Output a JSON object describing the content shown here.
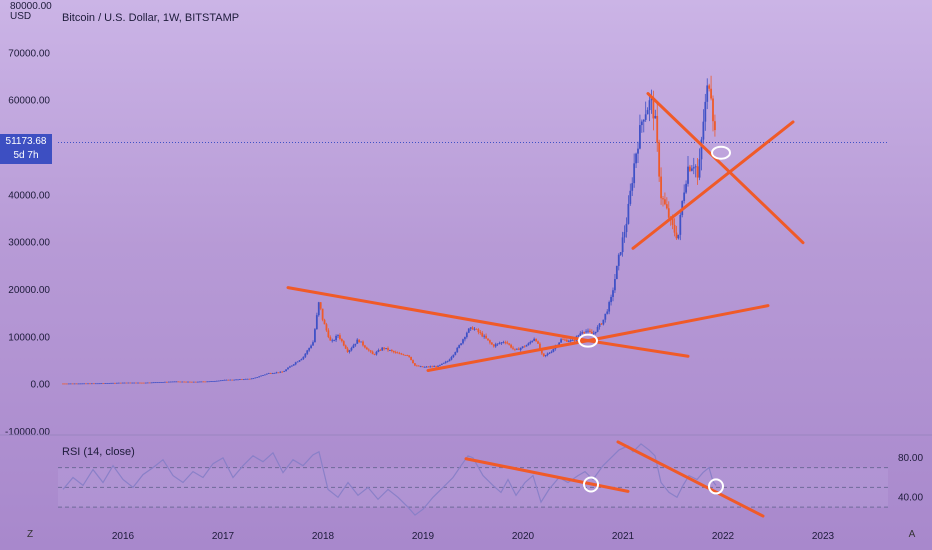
{
  "header": {
    "title": "Bitcoin / U.S. Dollar, 1W, BITSTAMP",
    "y_unit": "USD",
    "y_top_label": "80000.00"
  },
  "price_label": {
    "value": "51173.68",
    "countdown": "5d 7h"
  },
  "buttons": {
    "left": "Z",
    "right": "A"
  },
  "colors": {
    "background_top": "#cbb4e6",
    "background_bottom": "#a888cc",
    "candle_up": "#3f51c6",
    "candle_down": "#ee5a2a",
    "trendline": "#f05a28",
    "rsi_line": "#8a80c8",
    "price_line": "#3f51c6"
  },
  "chart_data": [
    {
      "type": "candlestick",
      "title": "Bitcoin / U.S. Dollar, 1W, BITSTAMP",
      "xlabel": "",
      "ylabel": "USD",
      "x_ticks": [
        "2016",
        "2017",
        "2018",
        "2019",
        "2020",
        "2021",
        "2022",
        "2023"
      ],
      "y_ticks": [
        "70000.00",
        "60000.00",
        "50000.00",
        "40000.00",
        "30000.00",
        "20000.00",
        "10000.00",
        "0.00",
        "-10000.00"
      ],
      "xlim": [
        2015.35,
        2023.65
      ],
      "ylim": [
        -10000,
        80000
      ],
      "current_price": 51173.68,
      "grid": false,
      "series": [
        {
          "points": [
            [
              2015.4,
              240
            ],
            [
              2015.6,
              260
            ],
            [
              2015.8,
              300
            ],
            [
              2016.0,
              430
            ],
            [
              2016.2,
              420
            ],
            [
              2016.4,
              560
            ],
            [
              2016.5,
              670
            ],
            [
              2016.7,
              600
            ],
            [
              2016.9,
              740
            ],
            [
              2017.0,
              980
            ],
            [
              2017.15,
              1100
            ],
            [
              2017.3,
              1300
            ],
            [
              2017.45,
              2400
            ],
            [
              2017.6,
              2700
            ],
            [
              2017.7,
              4300
            ],
            [
              2017.8,
              5800
            ],
            [
              2017.9,
              9000
            ],
            [
              2017.96,
              17500
            ],
            [
              2018.0,
              13500
            ],
            [
              2018.08,
              8800
            ],
            [
              2018.15,
              10500
            ],
            [
              2018.25,
              7000
            ],
            [
              2018.35,
              9500
            ],
            [
              2018.5,
              6300
            ],
            [
              2018.6,
              7800
            ],
            [
              2018.75,
              6500
            ],
            [
              2018.85,
              6300
            ],
            [
              2018.92,
              4000
            ],
            [
              2019.0,
              3700
            ],
            [
              2019.15,
              3900
            ],
            [
              2019.25,
              5000
            ],
            [
              2019.35,
              7800
            ],
            [
              2019.45,
              11500
            ],
            [
              2019.5,
              12000
            ],
            [
              2019.6,
              10300
            ],
            [
              2019.7,
              8200
            ],
            [
              2019.82,
              9200
            ],
            [
              2019.92,
              7200
            ],
            [
              2020.05,
              8500
            ],
            [
              2020.12,
              10000
            ],
            [
              2020.2,
              5800
            ],
            [
              2020.28,
              7000
            ],
            [
              2020.38,
              9500
            ],
            [
              2020.5,
              9200
            ],
            [
              2020.6,
              11500
            ],
            [
              2020.7,
              10700
            ],
            [
              2020.8,
              13500
            ],
            [
              2020.88,
              18000
            ],
            [
              2020.96,
              27000
            ],
            [
              2021.04,
              35000
            ],
            [
              2021.12,
              48000
            ],
            [
              2021.2,
              57000
            ],
            [
              2021.28,
              60000
            ],
            [
              2021.32,
              56000
            ],
            [
              2021.38,
              40000
            ],
            [
              2021.45,
              36000
            ],
            [
              2021.5,
              33000
            ],
            [
              2021.55,
              31000
            ],
            [
              2021.6,
              40000
            ],
            [
              2021.65,
              46000
            ],
            [
              2021.72,
              47000
            ],
            [
              2021.75,
              43000
            ],
            [
              2021.8,
              55000
            ],
            [
              2021.84,
              62000
            ],
            [
              2021.87,
              65000
            ],
            [
              2021.9,
              57000
            ],
            [
              2021.93,
              51173.68
            ]
          ]
        }
      ],
      "trendlines": [
        {
          "from": [
            2017.65,
            20500
          ],
          "to": [
            2020.65,
            9300
          ]
        },
        {
          "from": [
            2020.65,
            9300
          ],
          "to": [
            2021.65,
            6000
          ]
        },
        {
          "from": [
            2019.05,
            3000
          ],
          "to": [
            2020.65,
            9300
          ]
        },
        {
          "from": [
            2020.65,
            9300
          ],
          "to": [
            2022.45,
            16700
          ]
        },
        {
          "from": [
            2021.25,
            61500
          ],
          "to": [
            2022.8,
            30000
          ]
        },
        {
          "from": [
            2021.1,
            28800
          ],
          "to": [
            2022.7,
            55500
          ]
        }
      ],
      "markers": [
        [
          2020.65,
          9300
        ],
        [
          2021.98,
          49000
        ]
      ]
    },
    {
      "type": "line",
      "title": "RSI (14, close)",
      "xlabel": "",
      "ylabel": "",
      "xlim": [
        2015.35,
        2023.65
      ],
      "ylim": [
        15,
        100
      ],
      "y_ticks": [
        "80.00",
        "40.00"
      ],
      "bands": [
        70,
        50,
        30
      ],
      "series": [
        {
          "points": [
            [
              2015.4,
              48
            ],
            [
              2015.5,
              60
            ],
            [
              2015.6,
              52
            ],
            [
              2015.7,
              68
            ],
            [
              2015.8,
              55
            ],
            [
              2015.9,
              72
            ],
            [
              2016.0,
              58
            ],
            [
              2016.1,
              50
            ],
            [
              2016.2,
              63
            ],
            [
              2016.3,
              70
            ],
            [
              2016.4,
              78
            ],
            [
              2016.5,
              62
            ],
            [
              2016.6,
              55
            ],
            [
              2016.7,
              66
            ],
            [
              2016.8,
              60
            ],
            [
              2016.9,
              74
            ],
            [
              2017.0,
              80
            ],
            [
              2017.1,
              60
            ],
            [
              2017.2,
              72
            ],
            [
              2017.3,
              82
            ],
            [
              2017.4,
              76
            ],
            [
              2017.5,
              85
            ],
            [
              2017.6,
              65
            ],
            [
              2017.7,
              78
            ],
            [
              2017.8,
              72
            ],
            [
              2017.9,
              83
            ],
            [
              2017.96,
              86
            ],
            [
              2018.05,
              48
            ],
            [
              2018.15,
              40
            ],
            [
              2018.25,
              55
            ],
            [
              2018.35,
              42
            ],
            [
              2018.45,
              50
            ],
            [
              2018.55,
              38
            ],
            [
              2018.65,
              48
            ],
            [
              2018.75,
              40
            ],
            [
              2018.85,
              30
            ],
            [
              2018.92,
              22
            ],
            [
              2019.0,
              28
            ],
            [
              2019.1,
              40
            ],
            [
              2019.2,
              50
            ],
            [
              2019.3,
              60
            ],
            [
              2019.38,
              72
            ],
            [
              2019.45,
              82
            ],
            [
              2019.5,
              80
            ],
            [
              2019.6,
              62
            ],
            [
              2019.7,
              52
            ],
            [
              2019.78,
              45
            ],
            [
              2019.85,
              58
            ],
            [
              2019.93,
              42
            ],
            [
              2020.02,
              55
            ],
            [
              2020.1,
              62
            ],
            [
              2020.18,
              35
            ],
            [
              2020.26,
              48
            ],
            [
              2020.36,
              60
            ],
            [
              2020.45,
              55
            ],
            [
              2020.55,
              62
            ],
            [
              2020.62,
              66
            ],
            [
              2020.7,
              58
            ],
            [
              2020.8,
              72
            ],
            [
              2020.88,
              80
            ],
            [
              2020.96,
              88
            ],
            [
              2021.05,
              92
            ],
            [
              2021.1,
              86
            ],
            [
              2021.18,
              94
            ],
            [
              2021.26,
              88
            ],
            [
              2021.32,
              82
            ],
            [
              2021.38,
              55
            ],
            [
              2021.46,
              45
            ],
            [
              2021.54,
              40
            ],
            [
              2021.6,
              52
            ],
            [
              2021.66,
              62
            ],
            [
              2021.74,
              58
            ],
            [
              2021.8,
              65
            ],
            [
              2021.86,
              70
            ],
            [
              2021.9,
              56
            ],
            [
              2021.93,
              52
            ]
          ]
        }
      ],
      "trendlines": [
        {
          "from": [
            2019.43,
            79
          ],
          "to": [
            2021.05,
            46
          ]
        },
        {
          "from": [
            2020.95,
            96
          ],
          "to": [
            2022.4,
            21
          ]
        }
      ],
      "markers": [
        [
          2020.68,
          53
        ],
        [
          2021.93,
          51
        ]
      ]
    }
  ]
}
